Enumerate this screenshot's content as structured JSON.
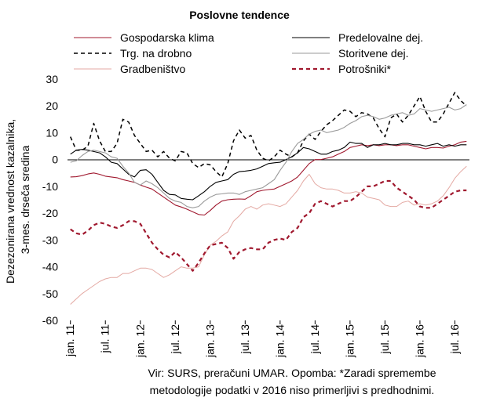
{
  "chart_data": {
    "type": "line",
    "title": "Poslovne tendence",
    "ylabel": "Dezezonirana vrednost kazalnika, 3-mes. drseča sredina",
    "xlabel": "",
    "ylim": [
      -60,
      30
    ],
    "yticks": [
      30,
      20,
      10,
      0,
      -10,
      -20,
      -30,
      -40,
      -50,
      -60
    ],
    "x_tick_labels": [
      "jan. 11",
      "jul. 11",
      "jan. 12",
      "jul. 12",
      "jan. 13",
      "jul. 13",
      "jan. 14",
      "jul. 14",
      "jan. 15",
      "jul. 15",
      "jan. 16",
      "jul. 16"
    ],
    "grid": false,
    "legend_placement": "top",
    "x_start_label": "jan. 11",
    "months_count": 69,
    "series": [
      {
        "name": "Gospodarska klima",
        "color": "#a0182e",
        "dash": "solid",
        "width": 1.1,
        "values": [
          -6.5,
          -6.4,
          -6.0,
          -5.4,
          -5.0,
          -5.5,
          -6.2,
          -6.5,
          -6.8,
          -7.5,
          -8.0,
          -8.5,
          -9.5,
          -10.3,
          -11.0,
          -12.5,
          -14.0,
          -15.5,
          -17.0,
          -17.7,
          -18.5,
          -19.5,
          -20.5,
          -20.7,
          -19.0,
          -17.0,
          -15.5,
          -15.0,
          -14.8,
          -14.7,
          -14.8,
          -13.5,
          -12.0,
          -11.5,
          -11.2,
          -11.0,
          -10.0,
          -9.0,
          -8.0,
          -6.5,
          -4.0,
          -1.5,
          0.0,
          0.0,
          0.5,
          1.0,
          2.0,
          3.0,
          4.5,
          5.0,
          5.5,
          5.2,
          5.5,
          5.2,
          5.5,
          5.5,
          5.2,
          5.5,
          5.5,
          5.0,
          4.5,
          4.0,
          4.5,
          4.5,
          4.3,
          5.0,
          5.5,
          6.5,
          6.8
        ]
      },
      {
        "name": "Predelovalne dej.",
        "color": "#000000",
        "dash": "solid",
        "width": 1.1,
        "values": [
          2.0,
          3.5,
          3.8,
          3.5,
          3.0,
          2.5,
          1.0,
          -1.0,
          -1.5,
          -3.5,
          -5.5,
          -6.5,
          -4.0,
          -3.8,
          -5.5,
          -8.5,
          -11.5,
          -13.0,
          -13.2,
          -14.5,
          -14.8,
          -15.0,
          -13.5,
          -12.0,
          -10.0,
          -8.5,
          -8.0,
          -7.5,
          -5.5,
          -4.5,
          -4.3,
          -4.0,
          -3.5,
          -2.5,
          -1.5,
          -1.2,
          -1.0,
          0.0,
          1.0,
          2.5,
          4.5,
          4.0,
          3.0,
          2.0,
          2.0,
          3.0,
          3.5,
          4.5,
          6.5,
          6.0,
          6.0,
          4.5,
          5.5,
          5.5,
          6.0,
          5.5,
          5.5,
          6.0,
          6.0,
          5.5,
          5.5,
          5.0,
          5.5,
          6.0,
          5.0,
          5.5,
          5.0,
          5.5,
          5.5
        ]
      },
      {
        "name": "Trg. na drobno",
        "color": "#000000",
        "dash": "dashed",
        "width": 1.5,
        "values": [
          8.5,
          3.5,
          3.5,
          5.0,
          13.5,
          7.0,
          3.0,
          3.0,
          6.0,
          15.0,
          14.0,
          9.0,
          6.0,
          3.0,
          3.5,
          1.0,
          3.0,
          0.5,
          -0.5,
          3.0,
          2.5,
          -1.5,
          -3.0,
          -1.5,
          -2.0,
          -4.5,
          -6.5,
          -1.5,
          7.0,
          11.0,
          8.0,
          9.0,
          3.5,
          0.5,
          -0.5,
          1.0,
          3.5,
          2.0,
          1.0,
          2.5,
          7.0,
          9.5,
          7.5,
          10.5,
          13.0,
          14.5,
          16.5,
          18.5,
          18.0,
          16.0,
          17.5,
          17.0,
          15.5,
          11.5,
          8.5,
          15.5,
          17.0,
          14.0,
          16.5,
          20.0,
          23.5,
          18.0,
          14.0,
          14.0,
          17.0,
          21.0,
          25.0,
          22.0,
          20.0
        ]
      },
      {
        "name": "Storitvene dej.",
        "color": "#9a9a9a",
        "dash": "solid",
        "width": 1.1,
        "values": [
          -1.0,
          -0.5,
          1.5,
          3.0,
          3.5,
          3.0,
          2.5,
          1.0,
          0.5,
          -2.5,
          -5.0,
          -8.5,
          -9.5,
          -8.0,
          -9.0,
          -10.5,
          -12.5,
          -14.5,
          -15.5,
          -16.0,
          -17.5,
          -18.0,
          -17.5,
          -15.5,
          -14.0,
          -13.0,
          -12.8,
          -12.5,
          -12.5,
          -13.0,
          -12.0,
          -11.5,
          -11.0,
          -10.5,
          -9.0,
          -7.5,
          -4.0,
          -1.0,
          3.0,
          6.0,
          7.5,
          9.5,
          10.5,
          11.0,
          10.0,
          10.5,
          11.0,
          12.0,
          13.5,
          14.5,
          16.0,
          16.5,
          16.0,
          15.0,
          15.5,
          16.5,
          17.0,
          17.5,
          16.5,
          17.0,
          19.0,
          18.5,
          18.0,
          18.5,
          19.0,
          19.5,
          18.5,
          19.0,
          20.5
        ]
      },
      {
        "name": "Gradbeništvo",
        "color": "#e4a9a3",
        "dash": "solid",
        "width": 1.0,
        "values": [
          -54.0,
          -52.0,
          -50.0,
          -48.5,
          -47.0,
          -45.5,
          -44.5,
          -44.0,
          -44.0,
          -42.5,
          -42.5,
          -41.5,
          -40.5,
          -40.5,
          -41.0,
          -42.5,
          -44.0,
          -43.0,
          -41.5,
          -40.0,
          -40.5,
          -40.5,
          -40.0,
          -35.5,
          -32.0,
          -30.5,
          -28.5,
          -27.0,
          -23.0,
          -21.0,
          -18.5,
          -17.5,
          -18.5,
          -17.0,
          -16.5,
          -17.0,
          -17.5,
          -16.5,
          -14.0,
          -11.5,
          -8.0,
          -5.5,
          -9.0,
          -10.5,
          -11.0,
          -11.0,
          -11.5,
          -12.5,
          -12.5,
          -12.0,
          -12.5,
          -14.0,
          -14.5,
          -15.0,
          -17.0,
          -17.5,
          -17.5,
          -16.0,
          -15.5,
          -17.0,
          -16.5,
          -17.0,
          -16.5,
          -15.5,
          -13.5,
          -10.5,
          -7.0,
          -4.5,
          -2.5
        ]
      },
      {
        "name": "Potrošniki*",
        "color": "#a0182e",
        "dash": "dashed",
        "width": 2.2,
        "values": [
          -26.0,
          -27.5,
          -28.0,
          -26.5,
          -24.5,
          -23.5,
          -24.0,
          -25.0,
          -25.5,
          -24.5,
          -23.0,
          -23.0,
          -24.0,
          -27.5,
          -31.0,
          -33.5,
          -35.5,
          -36.5,
          -34.5,
          -36.5,
          -39.0,
          -41.5,
          -38.5,
          -35.0,
          -32.0,
          -31.5,
          -31.0,
          -33.0,
          -37.0,
          -34.5,
          -33.5,
          -33.0,
          -33.5,
          -33.5,
          -31.0,
          -30.0,
          -29.5,
          -30.0,
          -27.0,
          -25.5,
          -21.5,
          -20.0,
          -16.5,
          -15.5,
          -16.5,
          -17.5,
          -16.5,
          -15.5,
          -15.5,
          -14.0,
          -12.0,
          -10.0,
          -10.0,
          -9.0,
          -8.0,
          -8.0,
          -10.5,
          -12.0,
          -13.5,
          -15.0,
          -17.5,
          -18.0,
          -18.0,
          -16.5,
          -15.0,
          -13.5,
          -12.0,
          -11.5,
          -11.5
        ]
      }
    ],
    "legend_columns": [
      [
        "Gospodarska klima",
        "Trg. na drobno",
        "Gradbeništvo"
      ],
      [
        "Predelovalne dej.",
        "Storitvene dej.",
        "Potrošniki*"
      ]
    ]
  },
  "footnote": {
    "line1": "Vir: SURS, preračuni UMAR. Opomba: *Zaradi spremembe",
    "line2": "metodologije podatki  v 2016 niso primerljivi s predhodnimi."
  }
}
